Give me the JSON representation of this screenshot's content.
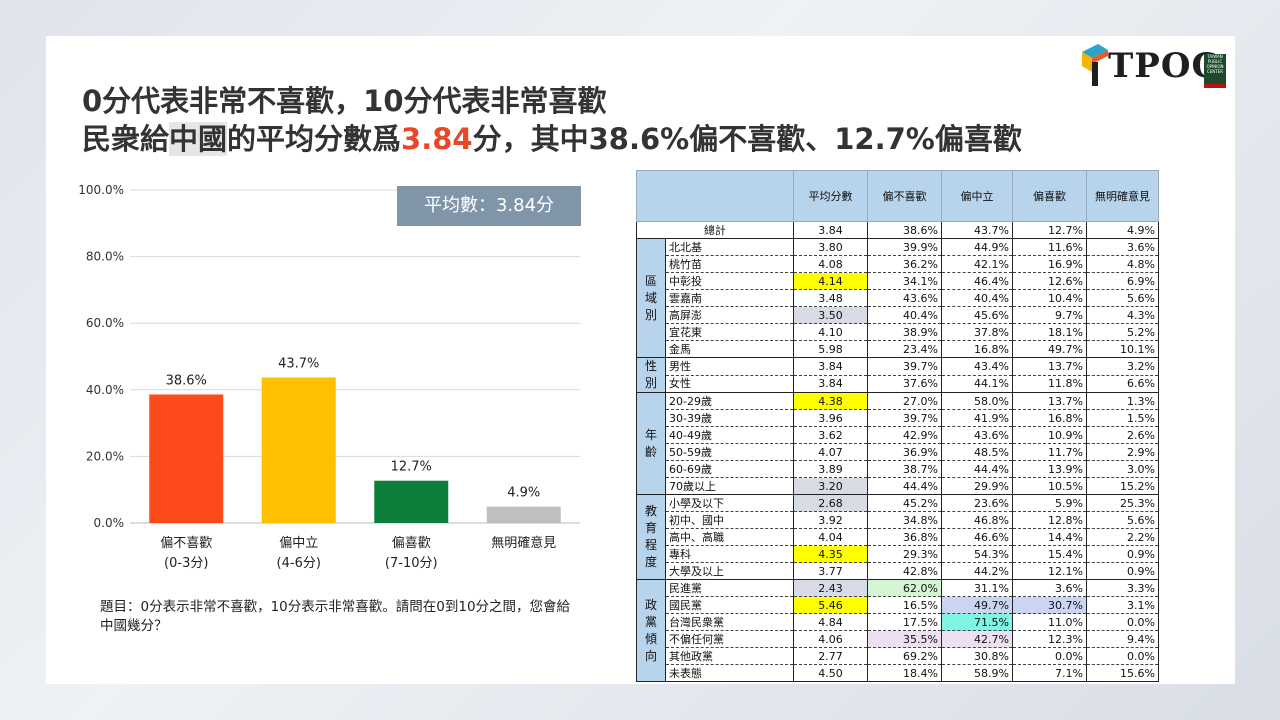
{
  "title": {
    "line1": "0分代表非常不喜歡，10分代表非常喜歡",
    "line2_a": "民衆給",
    "line2_hl": "中國",
    "line2_b": "的平均分數爲",
    "line2_num": "3.84",
    "line2_c": "分，其中38.6%偏不喜歡、12.7%偏喜歡"
  },
  "logo": {
    "text": "TPOC",
    "sub": "TAIWAN PUBLIC OPINION CENTER"
  },
  "average_badge": "平均數：3.84分",
  "question": "題目：0分表示非常不喜歡，10分表示非常喜歡。請問在0到10分之間，您會給中國幾分？",
  "chart_data": {
    "type": "bar",
    "categories": [
      {
        "line1": "偏不喜歡",
        "line2": "(0-3分)"
      },
      {
        "line1": "偏中立",
        "line2": "(4-6分)"
      },
      {
        "line1": "偏喜歡",
        "line2": "(7-10分)"
      },
      {
        "line1": "無明確意見",
        "line2": ""
      }
    ],
    "values": [
      38.6,
      43.7,
      12.7,
      4.9
    ],
    "value_labels": [
      "38.6%",
      "43.7%",
      "12.7%",
      "4.9%"
    ],
    "colors": [
      "#fc4a1a",
      "#ffc000",
      "#0e7f3a",
      "#bfbfbf"
    ],
    "ylim": [
      0,
      100
    ],
    "yticks": [
      "0.0%",
      "20.0%",
      "40.0%",
      "60.0%",
      "80.0%",
      "100.0%"
    ],
    "grid": true
  },
  "table": {
    "headers": [
      "平均分數",
      "偏不喜歡",
      "偏中立",
      "偏喜歡",
      "無明確意見"
    ],
    "total": {
      "label": "總計",
      "cells": [
        "3.84",
        "38.6%",
        "43.7%",
        "12.7%",
        "4.9%"
      ]
    },
    "groups": [
      {
        "name": "區域別",
        "rows": [
          {
            "label": "北北基",
            "cells": [
              "3.80",
              "39.9%",
              "44.9%",
              "11.6%",
              "3.6%"
            ]
          },
          {
            "label": "桃竹苗",
            "cells": [
              "4.08",
              "36.2%",
              "42.1%",
              "16.9%",
              "4.8%"
            ]
          },
          {
            "label": "中彰投",
            "cells": [
              "4.14",
              "34.1%",
              "46.4%",
              "12.6%",
              "6.9%"
            ],
            "hl": {
              "0": "#ffff00"
            }
          },
          {
            "label": "雲嘉南",
            "cells": [
              "3.48",
              "43.6%",
              "40.4%",
              "10.4%",
              "5.6%"
            ]
          },
          {
            "label": "高屏澎",
            "cells": [
              "3.50",
              "40.4%",
              "45.6%",
              "9.7%",
              "4.3%"
            ],
            "hl": {
              "0": "#d6dbe4"
            }
          },
          {
            "label": "宜花東",
            "cells": [
              "4.10",
              "38.9%",
              "37.8%",
              "18.1%",
              "5.2%"
            ]
          },
          {
            "label": "金馬",
            "cells": [
              "5.98",
              "23.4%",
              "16.8%",
              "49.7%",
              "10.1%"
            ]
          }
        ]
      },
      {
        "name": "性別",
        "rows": [
          {
            "label": "男性",
            "cells": [
              "3.84",
              "39.7%",
              "43.4%",
              "13.7%",
              "3.2%"
            ]
          },
          {
            "label": "女性",
            "cells": [
              "3.84",
              "37.6%",
              "44.1%",
              "11.8%",
              "6.6%"
            ]
          }
        ]
      },
      {
        "name": "年齡",
        "rows": [
          {
            "label": "20-29歲",
            "cells": [
              "4.38",
              "27.0%",
              "58.0%",
              "13.7%",
              "1.3%"
            ],
            "hl": {
              "0": "#ffff00"
            }
          },
          {
            "label": "30-39歲",
            "cells": [
              "3.96",
              "39.7%",
              "41.9%",
              "16.8%",
              "1.5%"
            ]
          },
          {
            "label": "40-49歲",
            "cells": [
              "3.62",
              "42.9%",
              "43.6%",
              "10.9%",
              "2.6%"
            ]
          },
          {
            "label": "50-59歲",
            "cells": [
              "4.07",
              "36.9%",
              "48.5%",
              "11.7%",
              "2.9%"
            ]
          },
          {
            "label": "60-69歲",
            "cells": [
              "3.89",
              "38.7%",
              "44.4%",
              "13.9%",
              "3.0%"
            ]
          },
          {
            "label": "70歲以上",
            "cells": [
              "3.20",
              "44.4%",
              "29.9%",
              "10.5%",
              "15.2%"
            ],
            "hl": {
              "0": "#d6dbe4"
            }
          }
        ]
      },
      {
        "name": "教育程度",
        "rows": [
          {
            "label": "小學及以下",
            "cells": [
              "2.68",
              "45.2%",
              "23.6%",
              "5.9%",
              "25.3%"
            ],
            "hl": {
              "0": "#d6dbe4"
            }
          },
          {
            "label": "初中、國中",
            "cells": [
              "3.92",
              "34.8%",
              "46.8%",
              "12.8%",
              "5.6%"
            ]
          },
          {
            "label": "高中、高職",
            "cells": [
              "4.04",
              "36.8%",
              "46.6%",
              "14.4%",
              "2.2%"
            ]
          },
          {
            "label": "專科",
            "cells": [
              "4.35",
              "29.3%",
              "54.3%",
              "15.4%",
              "0.9%"
            ],
            "hl": {
              "0": "#ffff00"
            }
          },
          {
            "label": "大學及以上",
            "cells": [
              "3.77",
              "42.8%",
              "44.2%",
              "12.1%",
              "0.9%"
            ]
          }
        ]
      },
      {
        "name": "政黨傾向",
        "rows": [
          {
            "label": "民進黨",
            "cells": [
              "2.43",
              "62.0%",
              "31.1%",
              "3.6%",
              "3.3%"
            ],
            "hl": {
              "0": "#d6dbe4",
              "1": "#d3f5d3"
            }
          },
          {
            "label": "國民黨",
            "cells": [
              "5.46",
              "16.5%",
              "49.7%",
              "30.7%",
              "3.1%"
            ],
            "hl": {
              "0": "#ffff00",
              "2": "#c9d5f2",
              "3": "#c9d5f2"
            }
          },
          {
            "label": "台灣民衆黨",
            "cells": [
              "4.84",
              "17.5%",
              "71.5%",
              "11.0%",
              "0.0%"
            ],
            "hl": {
              "2": "#7ff5e3"
            }
          },
          {
            "label": "不偏任何黨",
            "cells": [
              "4.06",
              "35.5%",
              "42.7%",
              "12.3%",
              "9.4%"
            ],
            "hl": {
              "1": "#ece0f2",
              "2": "#ece0f2"
            }
          },
          {
            "label": "其他政黨",
            "cells": [
              "2.77",
              "69.2%",
              "30.8%",
              "0.0%",
              "0.0%"
            ]
          },
          {
            "label": "未表態",
            "cells": [
              "4.50",
              "18.4%",
              "58.9%",
              "7.1%",
              "15.6%"
            ]
          }
        ]
      }
    ]
  }
}
